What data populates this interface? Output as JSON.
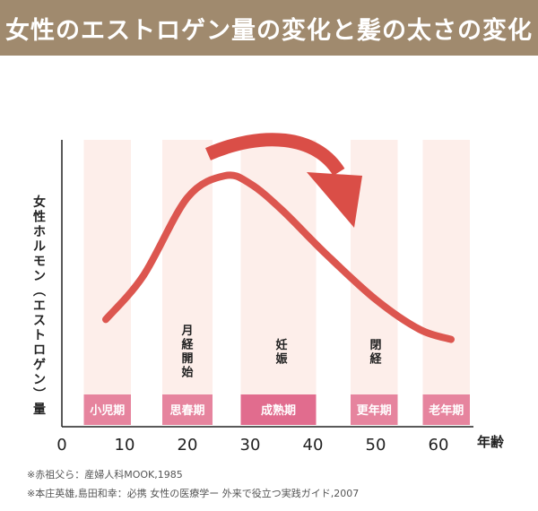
{
  "header": {
    "title": "女性のエストロゲン量の変化と髪の太さの変化"
  },
  "chart_data": {
    "type": "line",
    "ylabel": "女性ホルモン（エストロゲン）量",
    "xunit": "年齢",
    "xlim": [
      0,
      65
    ],
    "xticks": [
      0,
      10,
      20,
      30,
      40,
      50,
      60
    ],
    "ylim": [
      0,
      100
    ],
    "series": [
      {
        "x": [
          7,
          13,
          20,
          26,
          30,
          35,
          42,
          50,
          57,
          62
        ],
        "y": [
          25,
          47,
          86,
          97,
          93,
          80,
          58,
          35,
          20,
          15
        ]
      }
    ],
    "stages": [
      {
        "label": "小児期",
        "start": 3.5,
        "end": 11,
        "color": "#e6849e"
      },
      {
        "label": "思春期",
        "start": 16,
        "end": 24,
        "color": "#e6849e"
      },
      {
        "label": "成熟期",
        "start": 28.5,
        "end": 40.5,
        "color": "#e16c8e"
      },
      {
        "label": "更年期",
        "start": 46,
        "end": 53.5,
        "color": "#e6849e"
      },
      {
        "label": "老年期",
        "start": 57.5,
        "end": 65,
        "color": "#e6849e"
      }
    ],
    "events": [
      {
        "label": [
          "月",
          "経",
          "開",
          "始"
        ],
        "x": 20
      },
      {
        "label": [
          "妊",
          "娠"
        ],
        "x": 35
      },
      {
        "label": [
          "閉",
          "経"
        ],
        "x": 50
      }
    ],
    "colors": {
      "line": "#dc564f",
      "band": "#fdeeea",
      "arrow": "#da4e47",
      "axis": "#222222"
    }
  },
  "notes": [
    "※赤祖父ら：産婦人科MOOK,1985",
    "※本庄英雄,島田和幸：必携 女性の医療学ー 外来で役立つ実践ガイド,2007"
  ]
}
